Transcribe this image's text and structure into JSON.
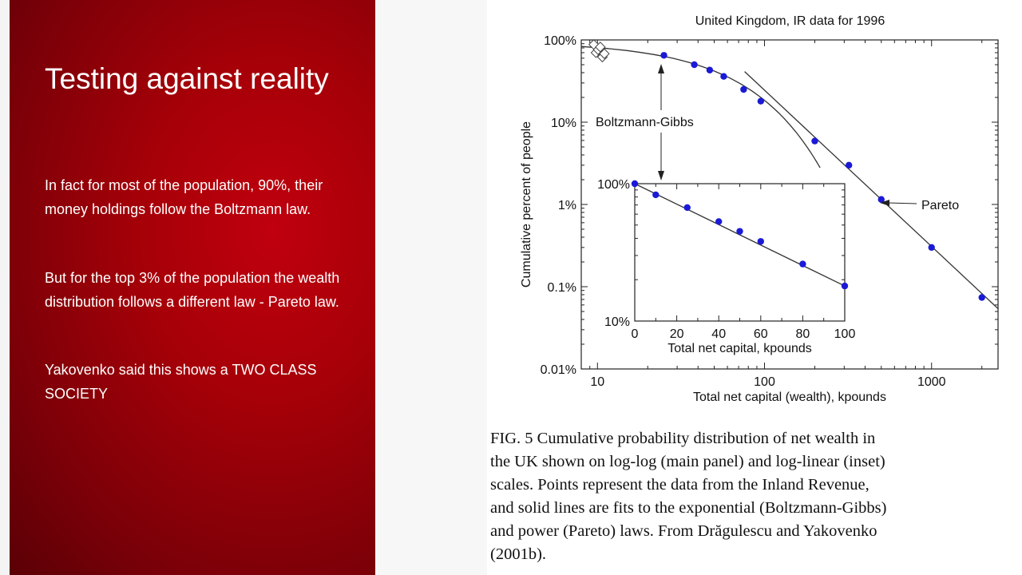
{
  "slide": {
    "title": "Testing against reality",
    "paragraphs": [
      "In fact for most of the population, 90%, their money holdings follow the Boltzmann law.",
      "But for the top 3% of the population the wealth distribution follows a different law - Pareto law.",
      "Yakovenko said this shows a TWO CLASS SOCIETY"
    ]
  },
  "figure": {
    "caption_lines": [
      "FIG. 5  Cumulative probability distribution of net wealth in",
      "the UK shown on log-log (main panel) and log-linear (inset)",
      "scales.  Points represent the data from the Inland Revenue,",
      "and solid lines are fits to the exponential (Boltzmann-Gibbs)",
      "and power (Pareto) laws.  From Drăgulescu and Yakovenko",
      "(2001b)."
    ]
  },
  "chart_data": [
    {
      "type": "scatter",
      "title": "United Kingdom, IR data for 1996",
      "xlabel": "Total net capital (wealth), kpounds",
      "ylabel": "Cumulative percent of people",
      "x_scale": "log",
      "y_scale": "log",
      "xlim": [
        8,
        2500
      ],
      "ylim": [
        0.01,
        100
      ],
      "x_ticks": [
        10,
        100,
        1000
      ],
      "x_tick_labels": [
        "10",
        "100",
        "1000"
      ],
      "y_ticks": [
        100,
        10,
        1,
        0.1,
        0.01
      ],
      "y_tick_labels": [
        "100%",
        "10%",
        "1%",
        "0.1%",
        "0.01%"
      ],
      "series": [
        {
          "marker": "circle",
          "color": "#1a1ad6",
          "x": [
            25,
            38,
            47,
            57,
            75,
            95,
            200,
            320,
            500,
            1000,
            2000
          ],
          "y": [
            65,
            50,
            43,
            36,
            25,
            18,
            5.9,
            3.0,
            1.15,
            0.3,
            0.074
          ]
        },
        {
          "marker": "diamond",
          "color": "#444444",
          "x": [
            9.5,
            9.8,
            10.1,
            10.4,
            10.7,
            11.0
          ],
          "y": [
            88,
            70,
            76,
            82,
            62,
            68
          ]
        }
      ],
      "annotations": [
        "Boltzmann-Gibbs",
        "Pareto"
      ]
    },
    {
      "type": "scatter",
      "xlabel": "Total net capital, kpounds",
      "x_scale": "linear",
      "y_scale": "log",
      "xlim": [
        0,
        100
      ],
      "ylim": [
        10,
        100
      ],
      "x_ticks": [
        0,
        20,
        40,
        60,
        80,
        100
      ],
      "x_tick_labels": [
        "0",
        "20",
        "40",
        "60",
        "80",
        "100"
      ],
      "y_ticks": [
        100,
        10
      ],
      "y_tick_labels": [
        "100%",
        "10%"
      ],
      "series": [
        {
          "marker": "circle",
          "color": "#1a1ad6",
          "x": [
            0,
            10,
            25,
            40,
            50,
            60,
            80,
            100
          ],
          "y": [
            100,
            83,
            67,
            53,
            45,
            38,
            26,
            18
          ]
        }
      ]
    }
  ]
}
